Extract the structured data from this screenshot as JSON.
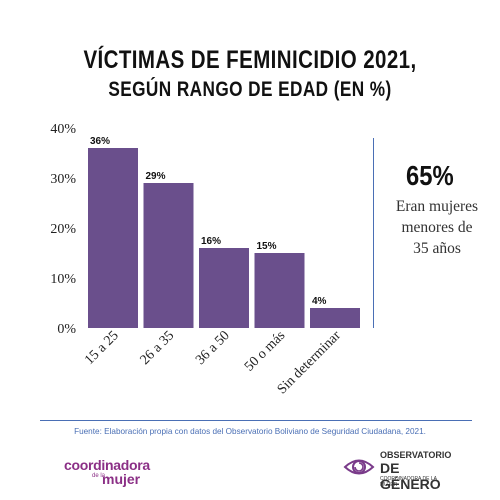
{
  "header": {
    "title_line1": "VÍCTIMAS DE FEMINICIDIO 2021,",
    "title_line2": "SEGÚN RANGO DE EDAD (EN %)"
  },
  "chart_data": {
    "type": "bar",
    "categories": [
      "15 a 25",
      "26 a 35",
      "36 a 50",
      "50 o más",
      "Sin determinar"
    ],
    "values": [
      36,
      29,
      16,
      15,
      4
    ],
    "value_labels": [
      "36%",
      "29%",
      "16%",
      "15%",
      "4%"
    ],
    "ylim": [
      0,
      40
    ],
    "yticks": [
      "0%",
      "10%",
      "20%",
      "30%",
      "40%"
    ],
    "grid": false,
    "bar_color": "#6a4f8c"
  },
  "callout": {
    "value": "65%",
    "text_line1": "Eran mujeres",
    "text_line2": "menores de",
    "text_line3": "35 años"
  },
  "footer": {
    "source": "Fuente: Elaboración propia con datos del Observatorio Boliviano de Seguridad Ciudadana, 2021.",
    "logo_left": {
      "line1": "coordinadora",
      "line2": "de la",
      "line3": "mujer"
    },
    "logo_right": {
      "line1": "OBSERVATORIO",
      "line2": "DE GÉNERO",
      "line3": "COORDINADORA DE LA MUJER"
    }
  },
  "colors": {
    "accent": "#4a6fb5",
    "bars": "#6a4f8c",
    "brand_purple": "#8b2f86"
  }
}
